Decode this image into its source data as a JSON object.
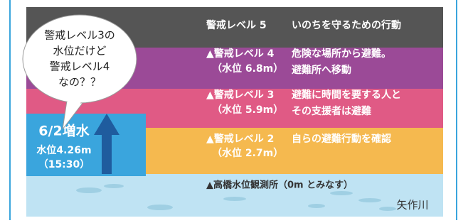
{
  "levels": [
    {
      "label": "警戒レベル 5",
      "action": [
        "いのちを守るための行動"
      ]
    },
    {
      "label": "▲警戒レベル 4",
      "level": "（水位 6.8m）",
      "action": [
        "危険な場所から避難。",
        "避難所へ移動"
      ]
    },
    {
      "label": "▲警戒レベル 3",
      "level": "（水位 5.9m）",
      "action": [
        "避難に時間を要する人と",
        "その支援者は避難"
      ]
    },
    {
      "label": "▲警戒レベル 2",
      "level": "（水位 2.7m）",
      "action": [
        "自らの避難行動を確認"
      ]
    }
  ],
  "station": "▲高橋水位観測所（0m とみなす）",
  "river": "矢作川",
  "bubble": [
    "警戒レベル3の",
    "水位だけど",
    "警戒レベル4",
    "なの？？"
  ],
  "current": {
    "date": "6/2増水",
    "level": "水位4.26m",
    "time": "（15:30）"
  }
}
